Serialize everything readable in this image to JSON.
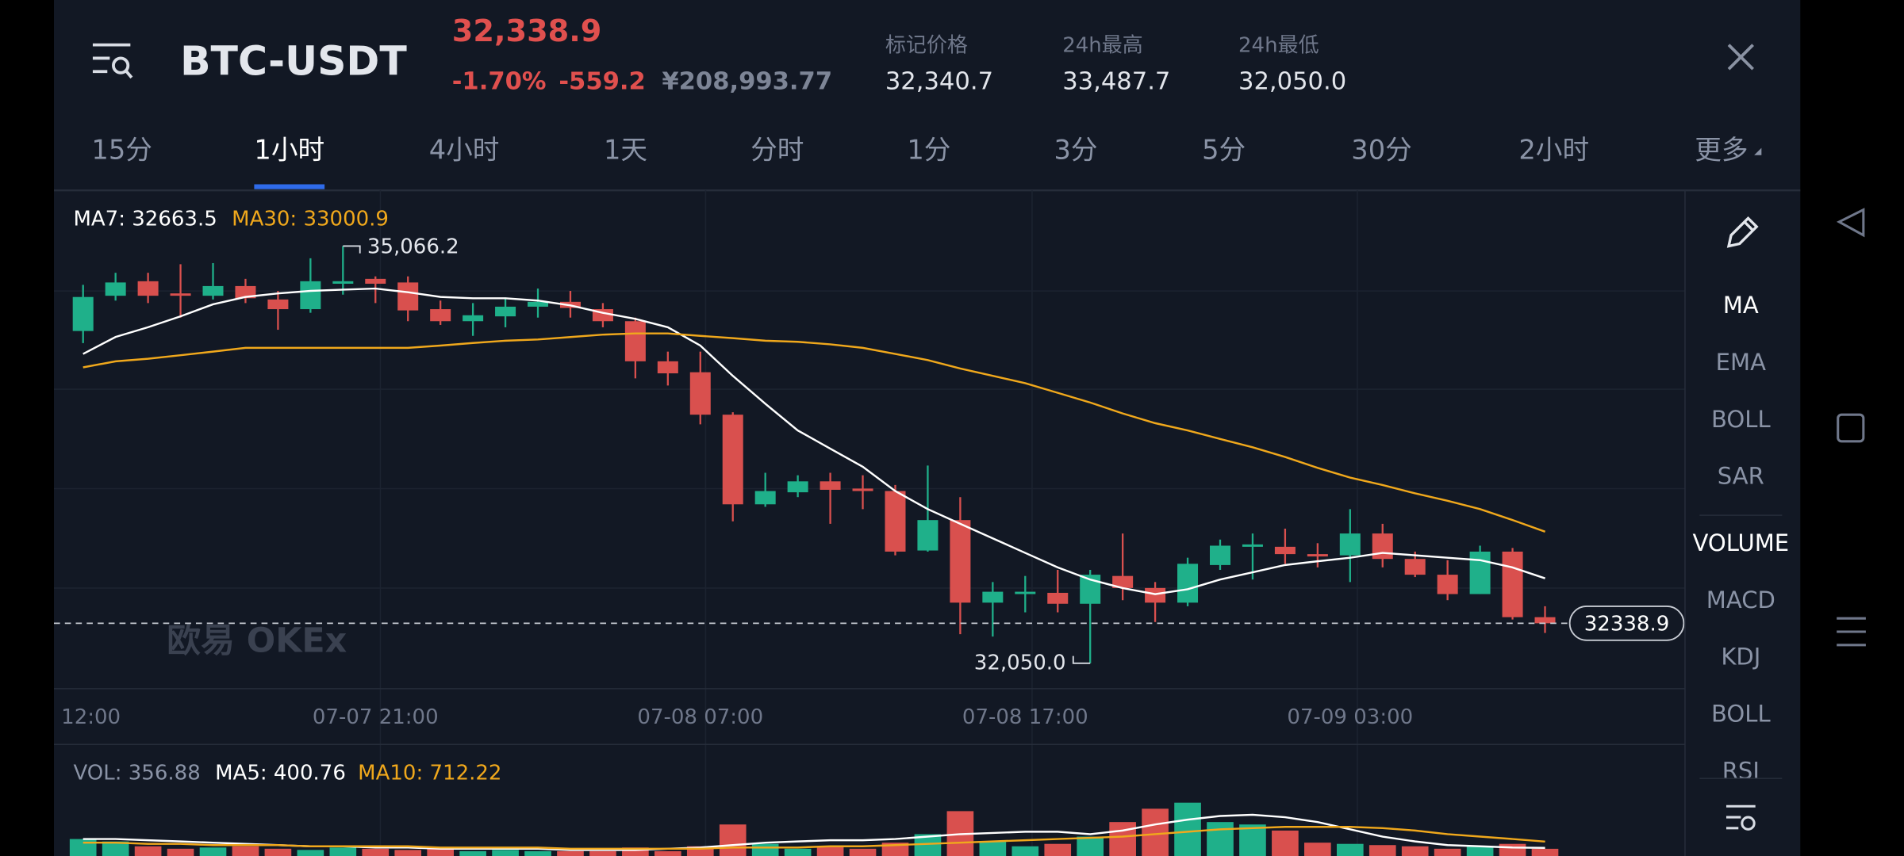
{
  "header": {
    "symbol": "BTC-USDT",
    "price": "32,338.9",
    "change_pct": "-1.70%",
    "change": "-559.2",
    "cny_price": "¥208,993.77",
    "stats": [
      {
        "label": "标记价格",
        "value": "32,340.7"
      },
      {
        "label": "24h最高",
        "value": "33,487.7"
      },
      {
        "label": "24h最低",
        "value": "32,050.0"
      }
    ]
  },
  "tabs": {
    "items": [
      "15分",
      "1小时",
      "4小时",
      "1天",
      "分时",
      "1分",
      "3分",
      "5分",
      "30分",
      "2小时",
      "更多"
    ],
    "active": 1
  },
  "indicators": {
    "main": [
      "MA",
      "EMA",
      "BOLL",
      "SAR"
    ],
    "main_active": 0,
    "sub": [
      "VOLUME",
      "MACD",
      "KDJ",
      "BOLL",
      "RSI"
    ],
    "sub_active": 0
  },
  "watermark": "欧易 OKEx",
  "chart_data": [
    {
      "type": "candlestick",
      "up_color": "#1fb08a",
      "down_color": "#d9504e",
      "categories": [
        "12:00",
        null,
        null,
        null,
        null,
        null,
        null,
        null,
        null,
        "07-07 21:00",
        null,
        null,
        null,
        null,
        null,
        null,
        null,
        null,
        null,
        "07-08 07:00",
        null,
        null,
        null,
        null,
        null,
        null,
        null,
        null,
        null,
        "07-08 17:00",
        null,
        null,
        null,
        null,
        null,
        null,
        null,
        null,
        null,
        "07-09 03:00",
        null,
        null,
        null,
        null,
        null,
        null
      ],
      "open": [
        34452,
        34707,
        34812,
        34724,
        34707,
        34777,
        34680,
        34610,
        34794,
        34829,
        34803,
        34610,
        34523,
        34558,
        34628,
        34663,
        34610,
        34523,
        34233,
        34154,
        33847,
        33199,
        33286,
        33365,
        33313,
        33295,
        32865,
        33085,
        32488,
        32550,
        32559,
        32480,
        32681,
        32594,
        32488,
        32760,
        32892,
        32892,
        32839,
        32830,
        32988,
        32804,
        32690,
        32550,
        32857,
        32383
      ],
      "high": [
        34786,
        34873,
        34873,
        34935,
        34943,
        34829,
        34742,
        34978,
        35066.2,
        34847,
        34847,
        34672,
        34654,
        34689,
        34759,
        34742,
        34654,
        34549,
        34303,
        34303,
        33865,
        33427,
        33409,
        33427,
        33409,
        33339,
        33479,
        33251,
        32637,
        32681,
        32725,
        32725,
        32988,
        32637,
        32813,
        32944,
        32988,
        33023,
        32918,
        33164,
        33058,
        32857,
        32795,
        32900,
        32883,
        32462
      ],
      "low": [
        34365,
        34672,
        34654,
        34549,
        34680,
        34654,
        34461,
        34584,
        34715,
        34654,
        34523,
        34496,
        34417,
        34479,
        34549,
        34549,
        34479,
        34110,
        34058,
        33777,
        33076,
        33181,
        33251,
        33058,
        33164,
        32830,
        32857,
        32260,
        32243,
        32418,
        32418,
        32050.0,
        32506,
        32348,
        32462,
        32725,
        32655,
        32769,
        32743,
        32637,
        32743,
        32673,
        32506,
        32550,
        32366,
        32269
      ],
      "close": [
        34698,
        34803,
        34707,
        34707,
        34777,
        34689,
        34610,
        34812,
        34812,
        34794,
        34601,
        34523,
        34566,
        34628,
        34663,
        34619,
        34523,
        34233,
        34146,
        33847,
        33199,
        33295,
        33365,
        33304,
        33295,
        32857,
        33085,
        32488,
        32567,
        32567,
        32480,
        32690,
        32594,
        32488,
        32769,
        32900,
        32909,
        32839,
        32822,
        32988,
        32804,
        32690,
        32550,
        32857,
        32383,
        32338.9
      ],
      "series": [
        {
          "name": "MA7",
          "label": "MA7: 32663.5",
          "color": "#ffffff",
          "values": [
            34286,
            34409,
            34479,
            34558,
            34645,
            34698,
            34724,
            34742,
            34751,
            34759,
            34733,
            34698,
            34689,
            34689,
            34672,
            34637,
            34584,
            34540,
            34479,
            34347,
            34128,
            33926,
            33733,
            33602,
            33470,
            33295,
            33164,
            33058,
            32953,
            32848,
            32743,
            32655,
            32594,
            32550,
            32585,
            32655,
            32708,
            32760,
            32787,
            32813,
            32848,
            32830,
            32813,
            32795,
            32743,
            32663.5
          ]
        },
        {
          "name": "MA30",
          "label": "MA30: 33000.9",
          "color": "#f0a81c",
          "values": [
            34189,
            34233,
            34251,
            34277,
            34303,
            34330,
            34330,
            34330,
            34330,
            34330,
            34330,
            34347,
            34365,
            34382,
            34391,
            34408,
            34426,
            34435,
            34435,
            34417,
            34400,
            34382,
            34374,
            34356,
            34330,
            34286,
            34242,
            34181,
            34128,
            34075,
            34005,
            33935,
            33856,
            33786,
            33733,
            33672,
            33611,
            33541,
            33462,
            33392,
            33339,
            33278,
            33225,
            33164,
            33085,
            33000.9
          ]
        }
      ],
      "high_label": {
        "value": 35066.2,
        "label": "35,066.2"
      },
      "low_label": {
        "value": 32050.0,
        "label": "32,050.0"
      },
      "last_price": {
        "value": 32338.9,
        "label": "32338.9"
      },
      "ylim": [
        31866,
        35469
      ]
    },
    {
      "type": "bar",
      "label": "VOL: 356.88",
      "values": [
        840,
        720,
        480,
        360,
        420,
        480,
        360,
        300,
        420,
        360,
        300,
        360,
        240,
        300,
        240,
        240,
        240,
        420,
        240,
        480,
        1560,
        600,
        360,
        480,
        360,
        660,
        1080,
        2220,
        720,
        480,
        600,
        960,
        1680,
        2340,
        2640,
        1680,
        1560,
        1260,
        660,
        600,
        540,
        480,
        360,
        480,
        600,
        356.88
      ],
      "series": [
        {
          "name": "MA5",
          "label": "MA5: 400.76",
          "color": "#ffffff",
          "values": [
            840,
            840,
            780,
            720,
            660,
            600,
            540,
            480,
            480,
            420,
            420,
            360,
            360,
            360,
            360,
            300,
            300,
            300,
            360,
            420,
            540,
            660,
            720,
            780,
            780,
            840,
            960,
            1080,
            1140,
            1200,
            1200,
            1080,
            1260,
            1560,
            1800,
            1980,
            2040,
            1920,
            1680,
            1320,
            960,
            720,
            540,
            480,
            420,
            400.76
          ]
        },
        {
          "name": "MA10",
          "label": "MA10: 712.22",
          "color": "#f0a81c",
          "values": [
            660,
            660,
            600,
            600,
            540,
            540,
            540,
            480,
            480,
            480,
            480,
            420,
            420,
            420,
            420,
            360,
            360,
            360,
            360,
            360,
            420,
            420,
            420,
            480,
            480,
            540,
            600,
            660,
            720,
            780,
            840,
            900,
            960,
            1080,
            1200,
            1320,
            1380,
            1440,
            1440,
            1440,
            1380,
            1260,
            1080,
            960,
            840,
            712.22
          ]
        }
      ],
      "ylim": [
        0,
        3360
      ]
    }
  ]
}
